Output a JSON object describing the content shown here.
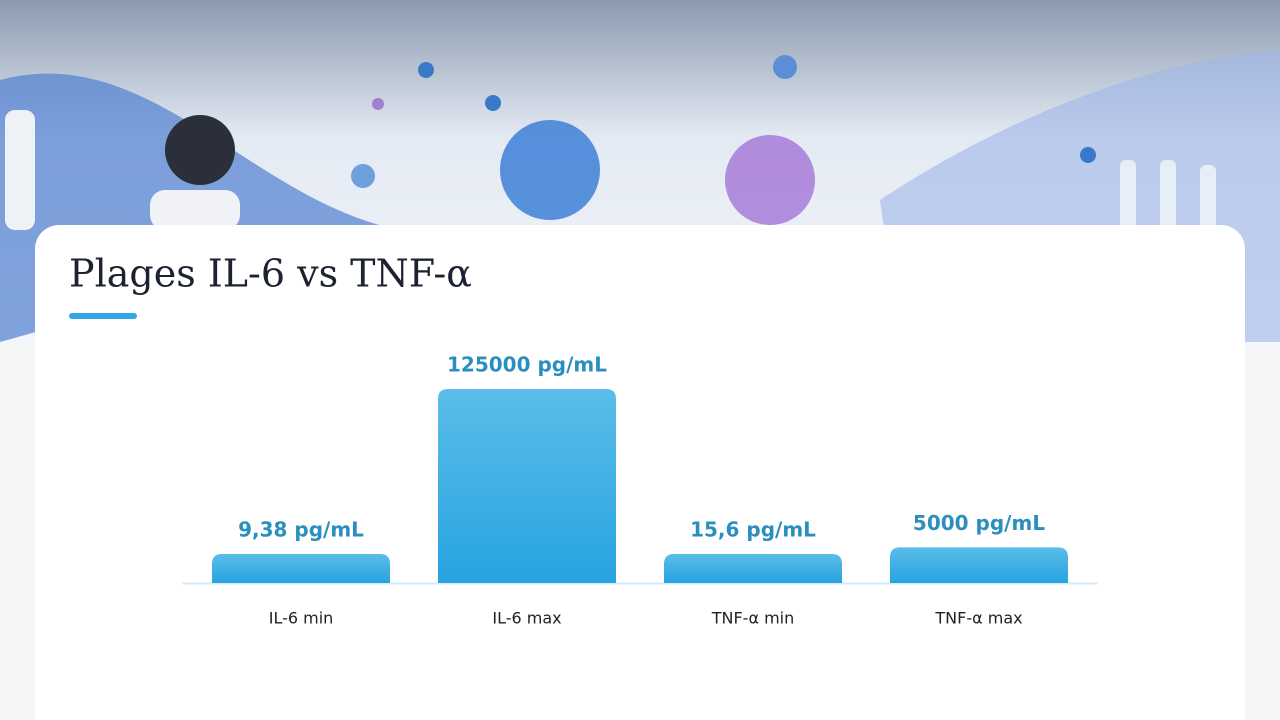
{
  "chart_data": {
    "type": "bar",
    "title": "Plages IL-6 vs TNF-α",
    "categories": [
      "IL-6 min",
      "IL-6 max",
      "TNF-α min",
      "TNF-α max"
    ],
    "values": [
      9.38,
      125000,
      15.6,
      5000
    ],
    "value_labels": [
      "9,38 pg/mL",
      "125000 pg/mL",
      "15,6 pg/mL",
      "5000 pg/mL"
    ],
    "color": "#2fa7e2"
  }
}
